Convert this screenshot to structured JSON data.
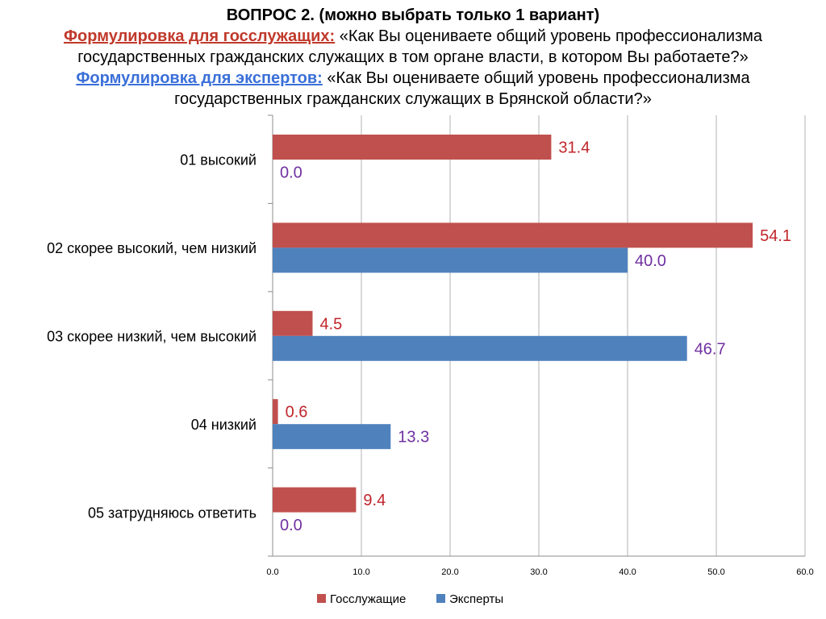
{
  "header": {
    "question": "ВОПРОС 2. (можно выбрать только 1 вариант)",
    "civil_label": "Формулировка для госслужащих:",
    "civil_text_1": " «Как Вы оцениваете общий уровень профессионализма",
    "civil_text_2": "государственных гражданских служащих в том органе власти, в котором Вы работаете?»",
    "expert_label": "Формулировка для экспертов:",
    "expert_text_1": " «Как Вы оцениваете общий уровень профессионализма",
    "expert_text_2": "государственных гражданских служащих в Брянской области?»"
  },
  "chart_data": {
    "type": "bar",
    "orientation": "horizontal",
    "categories": [
      "01  высокий",
      "02  скорее высокий, чем низкий",
      "03  скорее низкий, чем высокий",
      "04  низкий",
      "05  затрудняюсь ответить"
    ],
    "series": [
      {
        "name": "Госслужащие",
        "values": [
          31.4,
          54.1,
          4.5,
          0.6,
          9.4
        ],
        "color": "#c0504d",
        "label_color": "#c0262b"
      },
      {
        "name": "Эксперты",
        "values": [
          0.0,
          40.0,
          46.7,
          13.3,
          0.0
        ],
        "color": "#4f81bd",
        "label_color": "#7030a0"
      }
    ],
    "xlim": [
      0,
      60
    ],
    "xticks": [
      "0.0",
      "10.0",
      "20.0",
      "30.0",
      "40.0",
      "50.0",
      "60.0"
    ],
    "grid": true,
    "legend": "bottom"
  }
}
